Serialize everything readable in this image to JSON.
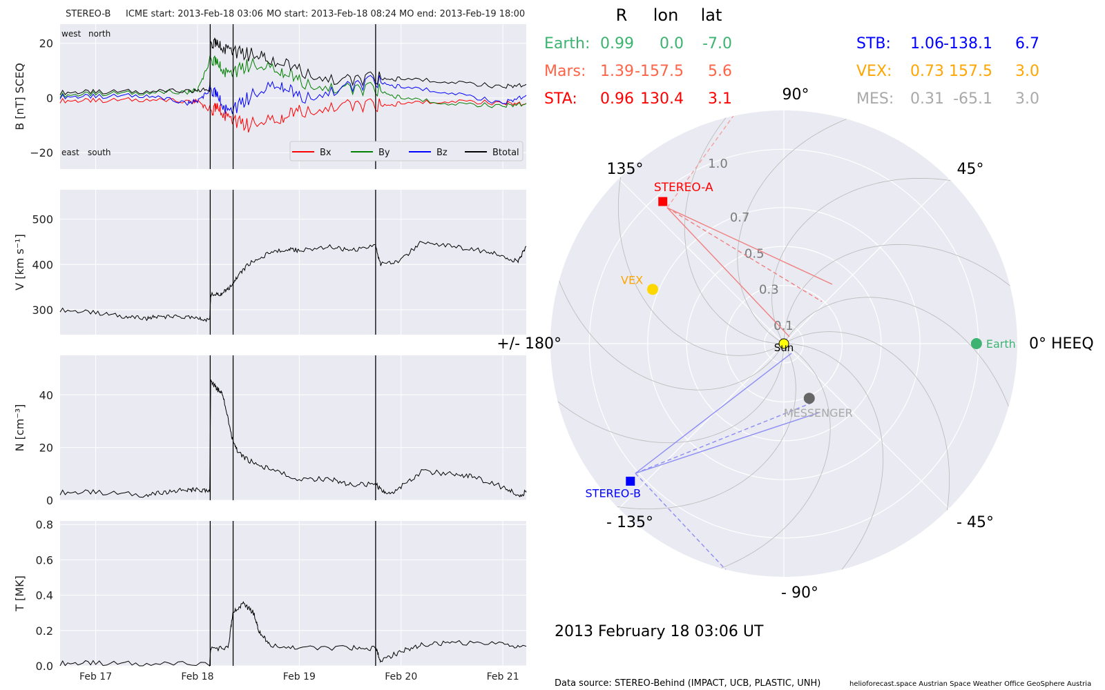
{
  "header": {
    "spacecraft": "STEREO-B",
    "icme_start": "ICME start: 2013-Feb-18 03:06",
    "mo_start": "MO start: 2013-Feb-18 08:24",
    "mo_end": "MO end: 2013-Feb-19 18:00"
  },
  "colors": {
    "panel_bg": "#eaeaf2",
    "earth": "#3cb371",
    "mars": "#ff6347",
    "sta": "#ff0000",
    "stb": "#0000ff",
    "vex": "#ffa500",
    "mes": "#a9a9a9",
    "bx": "#ff0000",
    "by": "#008000",
    "bz": "#0000ff",
    "btotal": "#000000"
  },
  "chart_data": [
    {
      "type": "line",
      "name": "magnetic-field",
      "ylabel": "B [nT] SCEQ",
      "ylim": [
        -26,
        27
      ],
      "yticks": [
        20,
        0,
        -20
      ],
      "ytick_labels": [
        "20",
        "0",
        "−20"
      ],
      "corner_labels": {
        "top_left": "west",
        "top_right": "north",
        "bottom_left": "east",
        "bottom_right": "south"
      },
      "legend": [
        "Bx",
        "By",
        "Bz",
        "Btotal"
      ],
      "legend_placement": "lower-right",
      "series": [
        {
          "name": "Bx",
          "x": [
            16.65,
            17.0,
            17.5,
            17.95,
            18.0,
            18.13,
            18.2,
            18.3,
            18.5,
            18.8,
            19.0,
            19.4,
            19.75,
            20.0,
            20.5,
            21.0,
            21.23
          ],
          "values": [
            -1,
            -1,
            -0.5,
            -1.5,
            -1,
            -5,
            -4,
            -8,
            -10,
            -8,
            -5,
            -3,
            -3,
            -2,
            -1,
            -2,
            -2
          ]
        },
        {
          "name": "By",
          "x": [
            16.65,
            17.0,
            17.5,
            17.9,
            18.0,
            18.13,
            18.2,
            18.3,
            18.5,
            18.8,
            19.0,
            19.4,
            19.75,
            20.0,
            20.5,
            21.0,
            21.23
          ],
          "values": [
            1,
            1.5,
            2,
            2,
            3,
            14,
            12,
            8,
            12,
            10,
            6,
            3,
            3,
            0,
            -2,
            -3,
            -2
          ]
        },
        {
          "name": "Bz",
          "x": [
            16.65,
            17.0,
            17.5,
            17.9,
            18.0,
            18.13,
            18.2,
            18.3,
            18.5,
            18.8,
            19.0,
            19.4,
            19.75,
            20.0,
            20.5,
            21.0,
            21.23
          ],
          "values": [
            0.5,
            0.5,
            1,
            -2,
            -1,
            3,
            0,
            -6,
            0,
            5,
            0,
            3,
            6,
            4,
            2,
            -2,
            1
          ]
        },
        {
          "name": "Btotal",
          "x": [
            16.65,
            17.0,
            17.5,
            17.95,
            18.12,
            18.13,
            18.2,
            18.3,
            18.5,
            18.7,
            19.0,
            19.4,
            19.75,
            20.0,
            20.5,
            21.0,
            21.23
          ],
          "values": [
            2,
            2.2,
            2.5,
            2.5,
            3,
            20,
            19,
            17,
            16,
            14,
            10,
            6,
            7,
            7,
            6,
            4,
            5
          ]
        }
      ]
    },
    {
      "type": "line",
      "name": "speed",
      "ylabel": "V [km s⁻¹]",
      "ylim": [
        245,
        565
      ],
      "yticks": [
        500,
        400,
        300
      ],
      "ytick_labels": [
        "500",
        "400",
        "300"
      ],
      "series": [
        {
          "name": "V",
          "x": [
            16.65,
            17.0,
            17.3,
            17.5,
            17.6,
            17.8,
            18.0,
            18.12,
            18.13,
            18.22,
            18.3,
            18.4,
            18.5,
            18.7,
            18.9,
            19.0,
            19.3,
            19.5,
            19.75,
            19.8,
            20.0,
            20.2,
            20.5,
            20.8,
            21.0,
            21.15,
            21.23
          ],
          "values": [
            300,
            293,
            285,
            280,
            285,
            285,
            280,
            276,
            333,
            333,
            345,
            375,
            400,
            425,
            435,
            430,
            440,
            430,
            440,
            400,
            410,
            450,
            440,
            430,
            420,
            405,
            440
          ]
        }
      ]
    },
    {
      "type": "line",
      "name": "density",
      "ylabel": "N [cm⁻³]",
      "ylim": [
        0,
        55
      ],
      "yticks": [
        40,
        20,
        0
      ],
      "ytick_labels": [
        "40",
        "20",
        "0"
      ],
      "series": [
        {
          "name": "N",
          "x": [
            16.65,
            17.0,
            17.5,
            17.7,
            17.9,
            18.0,
            18.12,
            18.13,
            18.2,
            18.25,
            18.33,
            18.4,
            18.5,
            18.7,
            19.0,
            19.3,
            19.5,
            19.75,
            19.85,
            20.0,
            20.2,
            20.5,
            20.7,
            21.0,
            21.15,
            21.23
          ],
          "values": [
            3,
            3,
            2,
            3,
            4,
            4,
            3,
            45,
            42,
            40,
            25,
            18,
            15,
            12,
            8,
            8,
            6,
            6,
            2,
            5,
            11,
            10,
            9,
            5,
            2,
            3
          ]
        }
      ]
    },
    {
      "type": "line",
      "name": "temperature",
      "ylabel": "T [MK]",
      "ylim": [
        0,
        0.82
      ],
      "yticks": [
        0.8,
        0.6,
        0.4,
        0.2,
        0.0
      ],
      "ytick_labels": [
        "0.8",
        "0.6",
        "0.4",
        "0.2",
        "0.0"
      ],
      "series": [
        {
          "name": "T",
          "x": [
            16.65,
            17.0,
            17.5,
            18.12,
            18.13,
            18.3,
            18.35,
            18.45,
            18.55,
            18.6,
            18.7,
            19.0,
            19.5,
            19.75,
            19.8,
            20.0,
            20.2,
            20.5,
            21.0,
            21.23
          ],
          "values": [
            0.015,
            0.015,
            0.012,
            0.01,
            0.1,
            0.1,
            0.3,
            0.35,
            0.3,
            0.2,
            0.12,
            0.1,
            0.1,
            0.1,
            0.03,
            0.08,
            0.12,
            0.13,
            0.12,
            0.11
          ]
        }
      ]
    },
    {
      "type": "scatter",
      "name": "polar-position-plot",
      "projection": "polar",
      "rlim": [
        0,
        1.2
      ],
      "r_tick_labels": [
        "0.1",
        "0.3",
        "0.5",
        "0.7",
        "1.0"
      ],
      "angle_labels": [
        "0° HEEQ",
        "45°",
        "90°",
        "135°",
        "+/- 180°",
        "- 135°",
        "- 90°",
        "- 45°"
      ],
      "points": [
        {
          "name": "Sun",
          "r": 0.0,
          "lon": 0.0
        },
        {
          "name": "Earth",
          "r": 0.99,
          "lon": 0.0
        },
        {
          "name": "STEREO-A",
          "r": 0.96,
          "lon": 130.4
        },
        {
          "name": "STEREO-B",
          "r": 1.06,
          "lon": -138.1
        },
        {
          "name": "VEX",
          "r": 0.73,
          "lon": 157.5
        },
        {
          "name": "MESSENGER",
          "r": 0.31,
          "lon": -65.1
        }
      ]
    }
  ],
  "shared_x": {
    "xlim": [
      16.65,
      21.23
    ],
    "ticks": [
      17,
      18,
      19,
      20,
      21
    ],
    "tick_labels": [
      "Feb 17",
      "Feb 18",
      "Feb 19",
      "Feb 20",
      "Feb 21"
    ],
    "event_lines": [
      18.125,
      18.35,
      19.75
    ]
  },
  "position_table": {
    "headers": [
      "R",
      "lon",
      "lat"
    ],
    "rows": [
      {
        "label": "Earth:",
        "r": "0.99",
        "lon": "0.0",
        "lat": "-7.0"
      },
      {
        "label": "Mars:",
        "r": "1.39",
        "lon": "-157.5",
        "lat": "5.6"
      },
      {
        "label": "STA:",
        "r": "0.96",
        "lon": "130.4",
        "lat": "3.1"
      },
      {
        "label": "STB:",
        "r": "1.06",
        "lon": "-138.1",
        "lat": "6.7"
      },
      {
        "label": "VEX:",
        "r": "0.73",
        "lon": "157.5",
        "lat": "3.0"
      },
      {
        "label": "MES:",
        "r": "0.31",
        "lon": "-65.1",
        "lat": "3.0"
      }
    ]
  },
  "timestamp": "2013 February 18  03:06 UT",
  "footer": {
    "source": "Data source: STEREO-Behind (IMPACT, UCB, PLASTIC, UNH)",
    "credits": "helioforecast.space   Austrian Space Weather Office   GeoSphere Austria"
  }
}
